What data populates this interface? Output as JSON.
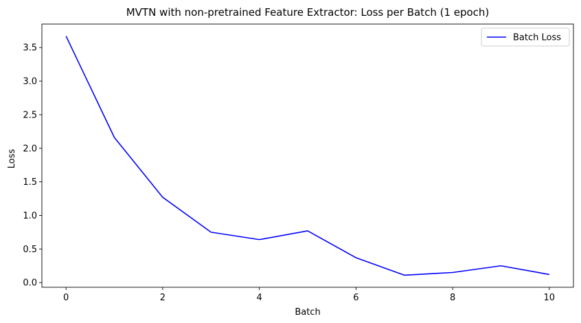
{
  "chart_data": {
    "type": "line",
    "title": "MVTN with non-pretrained Feature Extractor: Loss per Batch (1 epoch)",
    "xlabel": "Batch",
    "ylabel": "Loss",
    "x": [
      0,
      1,
      2,
      3,
      4,
      5,
      6,
      7,
      8,
      9,
      10
    ],
    "series": [
      {
        "name": "Batch Loss",
        "color": "#0000ff",
        "values": [
          3.67,
          2.16,
          1.27,
          0.75,
          0.64,
          0.77,
          0.37,
          0.11,
          0.15,
          0.25,
          0.12
        ]
      }
    ],
    "xlim": [
      -0.5,
      10.5
    ],
    "ylim": [
      -0.07,
      3.85
    ],
    "xticks": [
      0,
      2,
      4,
      6,
      8,
      10
    ],
    "xtick_labels": [
      "0",
      "2",
      "4",
      "6",
      "8",
      "10"
    ],
    "yticks": [
      0.0,
      0.5,
      1.0,
      1.5,
      2.0,
      2.5,
      3.0,
      3.5
    ],
    "ytick_labels": [
      "0.0",
      "0.5",
      "1.0",
      "1.5",
      "2.0",
      "2.5",
      "3.0",
      "3.5"
    ],
    "grid": false,
    "legend_position": "top-right"
  }
}
